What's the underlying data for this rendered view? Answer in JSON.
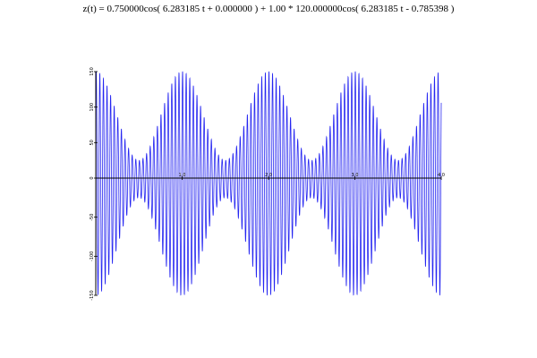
{
  "chart_data": {
    "type": "line",
    "title": "z(t) = 0.750000cos( 6.283185 t + 0.000000 ) + 1.00 * 120.000000cos( 6.283185 t - 0.785398 )",
    "xlabel": "",
    "ylabel": "",
    "xlim": [
      0,
      4
    ],
    "ylim": [
      -150,
      150
    ],
    "x_ticks": [
      {
        "value": 0,
        "label": "0"
      },
      {
        "value": 1,
        "label": "1.0"
      },
      {
        "value": 2,
        "label": "2.0"
      },
      {
        "value": 3,
        "label": "3.0"
      },
      {
        "value": 4,
        "label": "4.0"
      }
    ],
    "y_ticks": [
      {
        "value": 150,
        "label": "150"
      },
      {
        "value": 100,
        "label": "100"
      },
      {
        "value": 50,
        "label": "50"
      },
      {
        "value": 0,
        "label": "0"
      },
      {
        "value": -50,
        "label": "-50"
      },
      {
        "value": -100,
        "label": "-100"
      },
      {
        "value": -150,
        "label": "-150"
      }
    ],
    "series": [
      {
        "color": "#0000ee",
        "amplitude_envelope": {
          "x": [
            0,
            0.5,
            1.0,
            1.5,
            2.0,
            2.5,
            3.0,
            3.5,
            4.0
          ],
          "min": [
            35,
            25,
            150,
            25,
            150,
            25,
            150,
            25,
            150
          ],
          "max": [
            150,
            25,
            150,
            25,
            150,
            25,
            150,
            25,
            150
          ]
        },
        "oscillation_cycles_per_unit": 24
      }
    ],
    "grid": false,
    "legend": "none"
  }
}
